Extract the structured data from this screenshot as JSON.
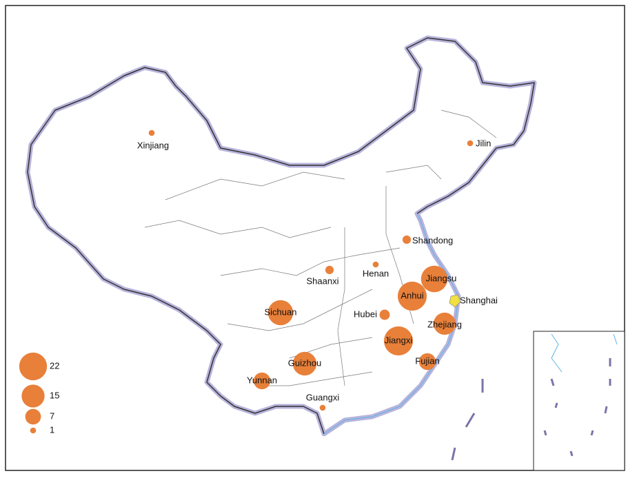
{
  "legend": {
    "sizes": [
      22,
      15,
      7,
      1
    ]
  },
  "provinces": [
    {
      "name": "Xinjiang",
      "value": 1
    },
    {
      "name": "Jilin",
      "value": 1
    },
    {
      "name": "Shandong",
      "value": 2
    },
    {
      "name": "Henan",
      "value": 1
    },
    {
      "name": "Shaanxi",
      "value": 2
    },
    {
      "name": "Jiangsu",
      "value": 20
    },
    {
      "name": "Anhui",
      "value": 24
    },
    {
      "name": "Sichuan",
      "value": 18
    },
    {
      "name": "Hubei",
      "value": 3
    },
    {
      "name": "Zhejiang",
      "value": 14
    },
    {
      "name": "Jiangxi",
      "value": 24
    },
    {
      "name": "Fujian",
      "value": 8
    },
    {
      "name": "Guizhou",
      "value": 16
    },
    {
      "name": "Yunnan",
      "value": 8
    },
    {
      "name": "Guangxi",
      "value": 1
    }
  ],
  "highlight": {
    "name": "Shanghai"
  }
}
